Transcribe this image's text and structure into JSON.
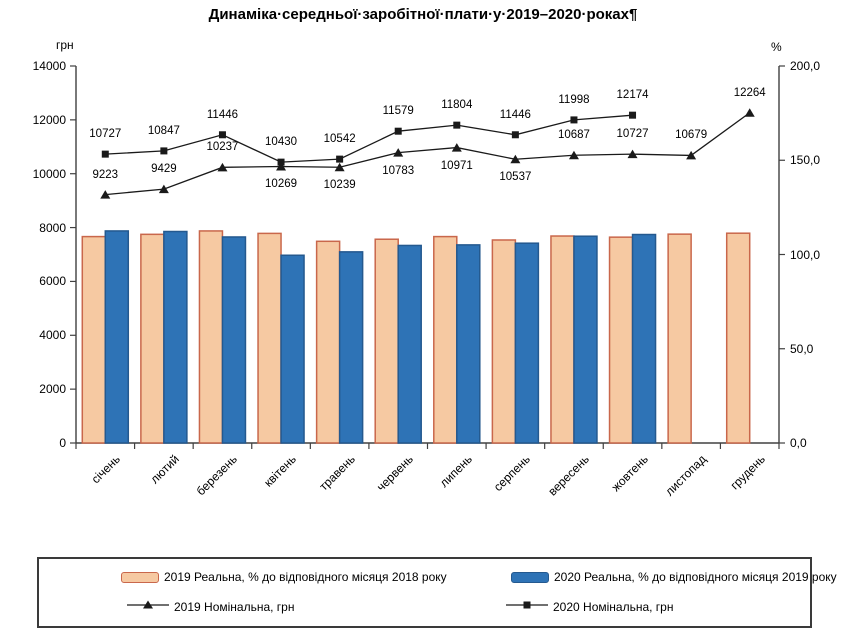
{
  "title": "Динаміка·середньої·заробітної·плати·у·2019–2020·роках¶",
  "left_axis": {
    "title": "грн",
    "min": 0,
    "max": 14000,
    "ticks": [
      "14000",
      "12000",
      "10000",
      "8000",
      "6000",
      "4000",
      "2000",
      "0"
    ]
  },
  "right_axis": {
    "title": "%",
    "min": 0,
    "max": 200,
    "ticks": [
      "200,0",
      "150,0",
      "100,0",
      "50,0",
      "0,0"
    ]
  },
  "chart_data": {
    "type": "combo-bar-line",
    "categories": [
      "січень",
      "лютий",
      "березень",
      "квітень",
      "травень",
      "червень",
      "липень",
      "серпень",
      "вересень",
      "жовтень",
      "листопад",
      "грудень"
    ],
    "left_axis_range": [
      0,
      14000
    ],
    "right_axis_range": [
      0,
      200
    ],
    "grid": false,
    "legend_position": "bottom-box",
    "series": [
      {
        "name": "2019 Реальна, % до відповідного місяця 2018 року",
        "type": "bar",
        "axis": "right",
        "fill": "#F6C9A2",
        "border": "#C9674B",
        "values": [
          109.5,
          110.7,
          112.5,
          111.2,
          107.0,
          108.1,
          109.5,
          107.7,
          109.8,
          109.2,
          110.8,
          111.3
        ],
        "labels": [
          "109,5",
          "110,7",
          "112,5",
          "111,2",
          "107,0",
          "108,1",
          "109,5",
          "107,7",
          "109,8",
          "109,2",
          "110,8",
          "111,3"
        ]
      },
      {
        "name": "2020 Реальна, % до відповідного місяця 2019 року",
        "type": "bar",
        "axis": "right",
        "fill": "#2E73B6",
        "border": "#24598F",
        "values": [
          112.5,
          112.2,
          109.3,
          99.6,
          101.4,
          104.8,
          105.1,
          106.0,
          109.7,
          110.6
        ],
        "labels": [
          "112,5",
          "112,2",
          "109,3",
          "99,6",
          "101,4",
          "104,8",
          "105,1",
          "106,0",
          "109,7",
          "110,6"
        ]
      },
      {
        "name": "2019 Номінальна, грн",
        "type": "line",
        "axis": "left",
        "marker": "triangle",
        "color": "#1a1a1a",
        "values": [
          9223,
          9429,
          10237,
          10269,
          10239,
          10783,
          10971,
          10537,
          10687,
          10727,
          10679,
          12264
        ],
        "labels": [
          "9223",
          "9429",
          "10237",
          "10269",
          "10239",
          "10783",
          "10971",
          "10537",
          "10687",
          "10727",
          "10679",
          "12264"
        ],
        "label_pos": [
          "above",
          "above",
          "above",
          "below",
          "below",
          "below",
          "below",
          "below",
          "above",
          "above",
          "above",
          "above"
        ]
      },
      {
        "name": "2020 Номінальна, грн",
        "type": "line",
        "axis": "left",
        "marker": "square",
        "color": "#1a1a1a",
        "values": [
          10727,
          10847,
          11446,
          10430,
          10542,
          11579,
          11804,
          11446,
          11998,
          12174
        ],
        "labels": [
          "10727",
          "10847",
          "11446",
          "10430",
          "10542",
          "11579",
          "11804",
          "11446",
          "11998",
          "12174"
        ],
        "label_pos": [
          "above",
          "above",
          "above",
          "above",
          "above",
          "above",
          "above",
          "above",
          "above",
          "above"
        ]
      }
    ]
  },
  "colors": {
    "bar_2019_fill": "#F6C9A2",
    "bar_2019_border": "#C9674B",
    "bar_2020_fill": "#2E73B6",
    "bar_2020_border": "#24598F",
    "line_color": "#1a1a1a",
    "bar_value_text": "#1F3864",
    "axis_color": "#404040"
  }
}
